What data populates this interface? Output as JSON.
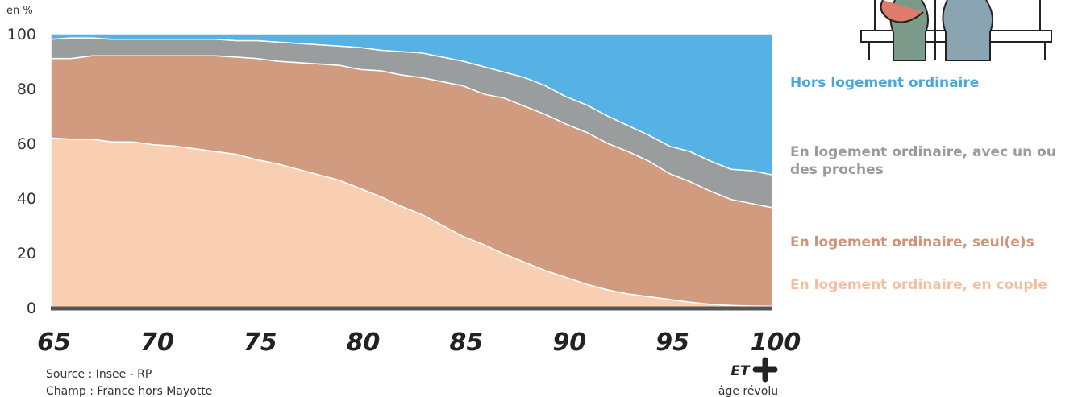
{
  "chart_data": {
    "type": "stacked-area",
    "y_label": "en %",
    "x": [
      65,
      66,
      67,
      68,
      69,
      70,
      71,
      72,
      73,
      74,
      75,
      76,
      77,
      78,
      79,
      80,
      81,
      82,
      83,
      84,
      85,
      86,
      87,
      88,
      89,
      90,
      91,
      92,
      93,
      94,
      95,
      96,
      97,
      98,
      99,
      100
    ],
    "series": [
      {
        "name": "En logement ordinaire, en couple",
        "color": "#f9cfb4",
        "label_color": "#f5bf9f",
        "values": [
          62,
          61.5,
          61.5,
          60.5,
          60.5,
          59.5,
          59,
          58,
          57,
          56,
          54,
          52.5,
          50.5,
          48.5,
          46.5,
          43.5,
          40.5,
          37,
          34,
          30,
          26,
          23,
          19.5,
          16.5,
          13.5,
          11,
          8.5,
          6.5,
          5,
          4,
          3,
          2,
          1.2,
          0.8,
          0.6,
          0.5
        ]
      },
      {
        "name": "En logement ordinaire, seul(e)s",
        "color": "#d19b80",
        "label_color": "#cf9479",
        "values": [
          29,
          29.5,
          30.5,
          31.5,
          31.5,
          32.5,
          33,
          34,
          35,
          35.5,
          37,
          37.5,
          39,
          40.5,
          42,
          43.5,
          46,
          48,
          50,
          52.5,
          55,
          55,
          57,
          57,
          57,
          56,
          55.5,
          53.5,
          52,
          49.5,
          46,
          44,
          41.3,
          38.7,
          37.4,
          36
        ]
      },
      {
        "name": "En logement ordinaire, avec un ou des proches",
        "color": "#999d9e",
        "label_color": "#9a9a9a",
        "values": [
          7,
          7.5,
          6.5,
          6,
          6,
          6,
          6,
          6,
          6,
          6,
          6.5,
          7,
          7,
          7,
          7,
          8,
          7.5,
          8.5,
          9,
          9,
          9,
          10,
          9.5,
          10.5,
          10.5,
          10,
          10,
          10,
          9.5,
          9.5,
          10,
          11,
          11,
          11,
          12,
          12
        ]
      },
      {
        "name": "Hors logement ordinaire",
        "color": "#56b2e5",
        "label_color": "#48a7df",
        "values": [
          2,
          1.5,
          1.5,
          2,
          2,
          2,
          2,
          2,
          2,
          2.5,
          2.5,
          3,
          3.5,
          4,
          4.5,
          5,
          6,
          6.5,
          7,
          8.5,
          10,
          12,
          14,
          16,
          19,
          23,
          26,
          30,
          33.5,
          37,
          41,
          43,
          46.5,
          49.5,
          50,
          51.5
        ]
      }
    ],
    "xlim": [
      65,
      100
    ],
    "xticks": [
      65,
      70,
      75,
      80,
      85,
      90,
      95,
      100
    ],
    "ylim": [
      0,
      100
    ],
    "yticks": [
      0,
      20,
      40,
      60,
      80,
      100
    ],
    "x_annotation_top": "ET",
    "x_annotation_bottom": "âge révolu",
    "source": "Source : Insee - RP",
    "scope": "Champ : France hors Mayotte"
  }
}
